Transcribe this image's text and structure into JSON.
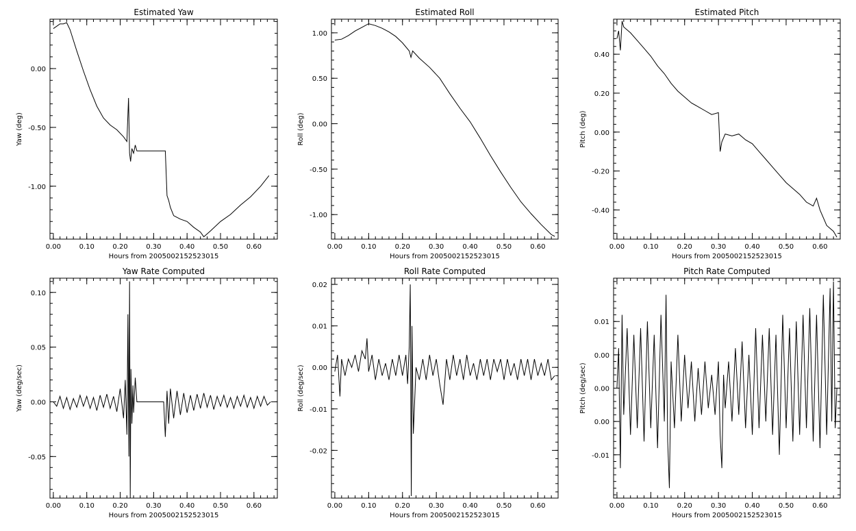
{
  "chart_data": [
    {
      "id": "yaw",
      "type": "line",
      "title": "Estimated Yaw",
      "xlabel": "Hours from 2005002152523015",
      "ylabel": "Yaw (deg)",
      "xlim": [
        -0.01,
        0.67
      ],
      "ylim": [
        -1.45,
        0.42
      ],
      "xticks": [
        "0.00",
        "0.10",
        "0.20",
        "0.30",
        "0.40",
        "0.50",
        "0.60"
      ],
      "xtick_values": [
        0,
        0.1,
        0.2,
        0.3,
        0.4,
        0.5,
        0.6
      ],
      "yticks": [
        "0.00",
        "-0.50",
        "-1.00"
      ],
      "ytick_values": [
        0.0,
        -0.5,
        -1.0
      ],
      "series": [
        {
          "x": [
            0,
            0.01,
            0.02,
            0.03,
            0.04,
            0.05,
            0.07,
            0.09,
            0.11,
            0.13,
            0.15,
            0.17,
            0.19,
            0.21,
            0.22,
            0.225,
            0.228,
            0.231,
            0.235,
            0.24,
            0.245,
            0.25,
            0.27,
            0.3,
            0.33,
            0.335,
            0.34,
            0.345,
            0.35,
            0.36,
            0.38,
            0.4,
            0.42,
            0.44,
            0.45,
            0.47,
            0.5,
            0.53,
            0.56,
            0.59,
            0.62,
            0.645
          ],
          "y": [
            0.34,
            0.36,
            0.38,
            0.38,
            0.39,
            0.33,
            0.15,
            -0.02,
            -0.18,
            -0.32,
            -0.42,
            -0.48,
            -0.52,
            -0.58,
            -0.62,
            -0.25,
            -0.72,
            -0.79,
            -0.68,
            -0.72,
            -0.65,
            -0.7,
            -0.7,
            -0.7,
            -0.7,
            -0.7,
            -1.08,
            -1.12,
            -1.18,
            -1.25,
            -1.28,
            -1.3,
            -1.35,
            -1.39,
            -1.43,
            -1.38,
            -1.3,
            -1.24,
            -1.16,
            -1.09,
            -1.0,
            -0.91
          ]
        }
      ]
    },
    {
      "id": "roll",
      "type": "line",
      "title": "Estimated Roll",
      "xlabel": "Hours from 2005002152523015",
      "ylabel": "Roll (deg)",
      "xlim": [
        -0.01,
        0.66
      ],
      "ylim": [
        -1.27,
        1.15
      ],
      "xticks": [
        "0.00",
        "0.10",
        "0.20",
        "0.30",
        "0.40",
        "0.50",
        "0.60"
      ],
      "xtick_values": [
        0,
        0.1,
        0.2,
        0.3,
        0.4,
        0.5,
        0.6
      ],
      "yticks": [
        "1.00",
        "0.50",
        "0.00",
        "-0.50",
        "-1.00"
      ],
      "ytick_values": [
        1.0,
        0.5,
        0.0,
        -0.5,
        -1.0
      ],
      "series": [
        {
          "x": [
            0,
            0.02,
            0.04,
            0.06,
            0.08,
            0.1,
            0.12,
            0.14,
            0.16,
            0.18,
            0.2,
            0.22,
            0.225,
            0.23,
            0.25,
            0.28,
            0.31,
            0.34,
            0.37,
            0.4,
            0.43,
            0.46,
            0.49,
            0.52,
            0.55,
            0.58,
            0.61,
            0.64,
            0.65
          ],
          "y": [
            0.92,
            0.93,
            0.97,
            1.02,
            1.06,
            1.1,
            1.08,
            1.05,
            1.01,
            0.96,
            0.89,
            0.8,
            0.73,
            0.8,
            0.72,
            0.62,
            0.5,
            0.33,
            0.17,
            0.02,
            -0.16,
            -0.35,
            -0.53,
            -0.7,
            -0.86,
            -0.99,
            -1.11,
            -1.22,
            -1.24
          ]
        }
      ]
    },
    {
      "id": "pitch",
      "type": "line",
      "title": "Estimated Pitch",
      "xlabel": "Hours from 2005002152523015",
      "ylabel": "Pitch (deg)",
      "xlim": [
        -0.01,
        0.66
      ],
      "ylim": [
        -0.55,
        0.58
      ],
      "xticks": [
        "0.00",
        "0.10",
        "0.20",
        "0.30",
        "0.40",
        "0.50",
        "0.60"
      ],
      "xtick_values": [
        0,
        0.1,
        0.2,
        0.3,
        0.4,
        0.5,
        0.6
      ],
      "yticks": [
        "0.40",
        "0.20",
        "0.00",
        "-0.20",
        "-0.40"
      ],
      "ytick_values": [
        0.4,
        0.2,
        0.0,
        -0.2,
        -0.4
      ],
      "series": [
        {
          "x": [
            0,
            0.005,
            0.01,
            0.015,
            0.02,
            0.04,
            0.06,
            0.08,
            0.1,
            0.12,
            0.14,
            0.16,
            0.18,
            0.2,
            0.22,
            0.24,
            0.26,
            0.28,
            0.3,
            0.305,
            0.31,
            0.32,
            0.34,
            0.36,
            0.38,
            0.4,
            0.42,
            0.44,
            0.46,
            0.48,
            0.5,
            0.52,
            0.54,
            0.56,
            0.58,
            0.59,
            0.6,
            0.62,
            0.64,
            0.65
          ],
          "y": [
            0.48,
            0.52,
            0.42,
            0.57,
            0.54,
            0.51,
            0.47,
            0.43,
            0.39,
            0.34,
            0.3,
            0.25,
            0.21,
            0.18,
            0.15,
            0.13,
            0.11,
            0.09,
            0.1,
            -0.1,
            -0.05,
            -0.01,
            -0.02,
            -0.01,
            -0.04,
            -0.06,
            -0.1,
            -0.14,
            -0.18,
            -0.22,
            -0.26,
            -0.29,
            -0.32,
            -0.36,
            -0.38,
            -0.34,
            -0.4,
            -0.48,
            -0.51,
            -0.54
          ]
        }
      ]
    },
    {
      "id": "yaw-rate",
      "type": "line",
      "title": "Yaw Rate Computed",
      "xlabel": "Hours from 2005002152523015",
      "ylabel": "Yaw (deg/sec)",
      "xlim": [
        -0.01,
        0.67
      ],
      "ylim": [
        -0.088,
        0.113
      ],
      "xticks": [
        "0.00",
        "0.10",
        "0.20",
        "0.30",
        "0.40",
        "0.50",
        "0.60"
      ],
      "xtick_values": [
        0,
        0.1,
        0.2,
        0.3,
        0.4,
        0.5,
        0.6
      ],
      "yticks": [
        "0.10",
        "0.05",
        "0.00",
        "-0.05"
      ],
      "ytick_values": [
        0.1,
        0.05,
        0.0,
        -0.05
      ],
      "series": [
        {
          "x": [
            0,
            0.01,
            0.02,
            0.03,
            0.04,
            0.05,
            0.06,
            0.07,
            0.08,
            0.09,
            0.1,
            0.11,
            0.12,
            0.13,
            0.14,
            0.15,
            0.16,
            0.17,
            0.18,
            0.19,
            0.2,
            0.21,
            0.215,
            0.22,
            0.223,
            0.226,
            0.228,
            0.23,
            0.232,
            0.235,
            0.238,
            0.24,
            0.245,
            0.25,
            0.26,
            0.3,
            0.33,
            0.335,
            0.34,
            0.345,
            0.35,
            0.36,
            0.37,
            0.38,
            0.39,
            0.4,
            0.41,
            0.42,
            0.43,
            0.44,
            0.45,
            0.46,
            0.47,
            0.48,
            0.49,
            0.5,
            0.51,
            0.52,
            0.53,
            0.54,
            0.55,
            0.56,
            0.57,
            0.58,
            0.59,
            0.6,
            0.61,
            0.62,
            0.63,
            0.64,
            0.65
          ],
          "y": [
            0.0,
            -0.004,
            0.005,
            -0.006,
            0.004,
            -0.007,
            0.003,
            -0.005,
            0.006,
            -0.004,
            0.005,
            -0.006,
            0.004,
            -0.008,
            0.006,
            -0.005,
            0.007,
            -0.006,
            0.005,
            -0.009,
            0.012,
            -0.015,
            0.02,
            -0.03,
            0.08,
            -0.05,
            0.11,
            -0.088,
            0.03,
            -0.02,
            0.015,
            -0.01,
            0.022,
            0.0,
            0.0,
            0.0,
            0.0,
            -0.032,
            0.01,
            -0.02,
            0.012,
            -0.015,
            0.01,
            -0.012,
            0.008,
            -0.01,
            0.006,
            -0.008,
            0.007,
            -0.006,
            0.008,
            -0.005,
            0.006,
            -0.007,
            0.005,
            -0.004,
            0.006,
            -0.005,
            0.004,
            -0.006,
            0.005,
            -0.004,
            0.006,
            -0.005,
            0.004,
            -0.006,
            0.005,
            -0.004,
            0.005,
            -0.003,
            0.0
          ]
        }
      ]
    },
    {
      "id": "roll-rate",
      "type": "line",
      "title": "Roll Rate Computed",
      "xlabel": "Hours from 2005002152523015",
      "ylabel": "Roll (deg/sec)",
      "xlim": [
        -0.01,
        0.66
      ],
      "ylim": [
        -0.0315,
        0.0215
      ],
      "xticks": [
        "0.00",
        "0.10",
        "0.20",
        "0.30",
        "0.40",
        "0.50",
        "0.60"
      ],
      "xtick_values": [
        0,
        0.1,
        0.2,
        0.3,
        0.4,
        0.5,
        0.6
      ],
      "yticks": [
        "0.02",
        "0.01",
        "0.00",
        "-0.01",
        "-0.02"
      ],
      "ytick_values": [
        0.02,
        0.01,
        0.0,
        -0.01,
        -0.02
      ],
      "series": [
        {
          "x": [
            0,
            0.008,
            0.015,
            0.02,
            0.03,
            0.04,
            0.05,
            0.06,
            0.07,
            0.08,
            0.09,
            0.095,
            0.1,
            0.11,
            0.12,
            0.13,
            0.14,
            0.15,
            0.16,
            0.17,
            0.18,
            0.19,
            0.2,
            0.21,
            0.215,
            0.22,
            0.223,
            0.226,
            0.228,
            0.232,
            0.24,
            0.25,
            0.26,
            0.27,
            0.28,
            0.29,
            0.3,
            0.31,
            0.32,
            0.33,
            0.34,
            0.35,
            0.36,
            0.37,
            0.38,
            0.39,
            0.4,
            0.41,
            0.42,
            0.43,
            0.44,
            0.45,
            0.46,
            0.47,
            0.48,
            0.49,
            0.5,
            0.51,
            0.52,
            0.53,
            0.54,
            0.55,
            0.56,
            0.57,
            0.58,
            0.59,
            0.6,
            0.61,
            0.62,
            0.63,
            0.64,
            0.65
          ],
          "y": [
            -0.001,
            0.003,
            -0.007,
            0.002,
            -0.002,
            0.002,
            0.0,
            0.003,
            -0.001,
            0.004,
            0.002,
            0.007,
            -0.001,
            0.003,
            -0.003,
            0.002,
            -0.002,
            0.001,
            -0.003,
            0.002,
            -0.002,
            0.003,
            -0.002,
            0.003,
            -0.004,
            0.005,
            0.02,
            -0.031,
            0.01,
            -0.016,
            0.0,
            -0.003,
            0.002,
            -0.003,
            0.003,
            -0.002,
            0.002,
            -0.004,
            -0.009,
            0.002,
            -0.003,
            0.003,
            -0.002,
            0.002,
            -0.003,
            0.003,
            -0.002,
            0.001,
            -0.003,
            0.002,
            -0.002,
            0.002,
            -0.003,
            0.002,
            -0.001,
            0.002,
            -0.003,
            0.002,
            -0.002,
            0.001,
            -0.003,
            0.002,
            -0.002,
            0.002,
            -0.003,
            0.002,
            -0.002,
            0.001,
            -0.002,
            0.002,
            -0.003,
            -0.002
          ]
        }
      ]
    },
    {
      "id": "pitch-rate",
      "type": "line",
      "title": "Pitch Rate Computed",
      "xlabel": "Hours from 2005002152523015",
      "ylabel": "Pitch (deg/sec)",
      "xlim": [
        -0.01,
        0.66
      ],
      "ylim": [
        -0.0165,
        0.0165
      ],
      "xticks": [
        "0.00",
        "0.10",
        "0.20",
        "0.30",
        "0.40",
        "0.50",
        "0.60"
      ],
      "xtick_values": [
        0,
        0.1,
        0.2,
        0.3,
        0.4,
        0.5,
        0.6
      ],
      "yticks": [
        "0.01",
        "0.00",
        "0.00",
        "0.00",
        "-0.01"
      ],
      "ytick_values": [
        0.01,
        0.005,
        0.0,
        -0.005,
        -0.01
      ],
      "series": [
        {
          "x": [
            0,
            0.005,
            0.01,
            0.015,
            0.02,
            0.03,
            0.04,
            0.05,
            0.06,
            0.07,
            0.08,
            0.09,
            0.1,
            0.11,
            0.12,
            0.13,
            0.14,
            0.145,
            0.15,
            0.155,
            0.16,
            0.17,
            0.18,
            0.19,
            0.2,
            0.21,
            0.22,
            0.23,
            0.24,
            0.25,
            0.26,
            0.27,
            0.28,
            0.29,
            0.3,
            0.305,
            0.31,
            0.315,
            0.32,
            0.33,
            0.34,
            0.35,
            0.36,
            0.37,
            0.38,
            0.39,
            0.4,
            0.41,
            0.42,
            0.43,
            0.44,
            0.45,
            0.46,
            0.47,
            0.48,
            0.49,
            0.5,
            0.51,
            0.52,
            0.53,
            0.54,
            0.55,
            0.56,
            0.57,
            0.58,
            0.59,
            0.6,
            0.61,
            0.62,
            0.63,
            0.635,
            0.64,
            0.645,
            0.65
          ],
          "y": [
            0.0,
            0.006,
            -0.012,
            0.011,
            -0.004,
            0.009,
            -0.007,
            0.008,
            -0.006,
            0.009,
            -0.008,
            0.01,
            -0.006,
            0.008,
            -0.009,
            0.011,
            -0.005,
            0.014,
            -0.008,
            -0.015,
            0.004,
            -0.006,
            0.008,
            -0.005,
            0.005,
            -0.003,
            0.004,
            -0.005,
            0.003,
            -0.004,
            0.004,
            -0.003,
            0.002,
            -0.004,
            0.004,
            -0.007,
            -0.012,
            0.002,
            -0.003,
            0.004,
            -0.005,
            0.006,
            -0.004,
            0.007,
            -0.006,
            0.005,
            -0.007,
            0.009,
            -0.006,
            0.008,
            -0.005,
            0.009,
            -0.007,
            0.008,
            -0.01,
            0.011,
            -0.006,
            0.009,
            -0.008,
            0.01,
            -0.007,
            0.011,
            -0.006,
            0.012,
            -0.008,
            0.011,
            -0.009,
            0.014,
            -0.007,
            0.015,
            -0.005,
            0.016,
            -0.006,
            0.0
          ]
        }
      ]
    }
  ]
}
